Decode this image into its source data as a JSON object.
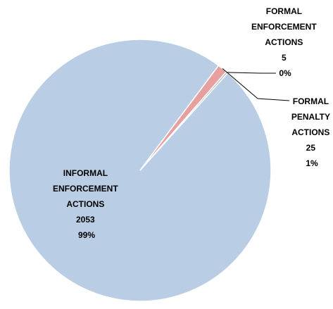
{
  "chart_data": {
    "type": "pie",
    "title": "",
    "slices": [
      {
        "name": "INFORMAL ENFORCEMENT ACTIONS",
        "label_lines": [
          "INFORMAL",
          "ENFORCEMENT",
          "ACTIONS"
        ],
        "value": 2053,
        "value_text": "2053",
        "percent_text": "99%",
        "color": "#b9cde5"
      },
      {
        "name": "FORMAL PENALTY ACTIONS",
        "label_lines": [
          "FORMAL",
          "PENALTY",
          "ACTIONS"
        ],
        "value": 25,
        "value_text": "25",
        "percent_text": "1%",
        "color": "#e6a0a0"
      },
      {
        "name": "FORMAL ENFORCEMENT ACTIONS",
        "label_lines": [
          "FORMAL",
          "ENFORCEMENT",
          "ACTIONS"
        ],
        "value": 5,
        "value_text": "5",
        "percent_text": "0%",
        "color": "#b7b7b7"
      }
    ],
    "start_angle_deg": 48,
    "direction": "clockwise",
    "legend": "none",
    "leader_lines": true
  }
}
